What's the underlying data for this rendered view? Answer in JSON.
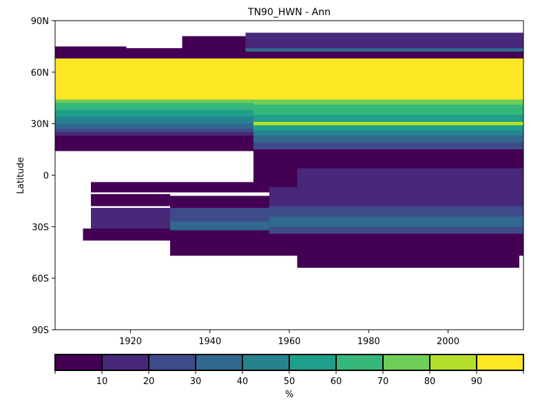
{
  "chart_data": {
    "type": "heatmap",
    "title": "TN90_HWN - Ann",
    "xlabel": "",
    "ylabel": "Latitude",
    "xlim": [
      1901,
      2019
    ],
    "ylim": [
      -90,
      90
    ],
    "x_ticks": [
      1920,
      1940,
      1960,
      1980,
      2000
    ],
    "y_ticks": [
      {
        "value": 90,
        "label": "90N"
      },
      {
        "value": 60,
        "label": "60N"
      },
      {
        "value": 30,
        "label": "30N"
      },
      {
        "value": 0,
        "label": "0"
      },
      {
        "value": -30,
        "label": "30S"
      },
      {
        "value": -60,
        "label": "60S"
      },
      {
        "value": -90,
        "label": "90S"
      }
    ],
    "grid": false,
    "colorbar": {
      "label": "%",
      "range": [
        0,
        100
      ],
      "levels": [
        0,
        10,
        20,
        30,
        40,
        50,
        60,
        70,
        80,
        90,
        100
      ],
      "tick_labels": [
        "10",
        "20",
        "30",
        "40",
        "50",
        "60",
        "70",
        "80",
        "90"
      ],
      "colors": [
        "#440154",
        "#482878",
        "#3e4a89",
        "#31688e",
        "#26828e",
        "#1f9e89",
        "#35b779",
        "#6ece58",
        "#b5de2b",
        "#fde725"
      ]
    },
    "bands": [
      {
        "x": [
          1901,
          2019
        ],
        "lat": [
          68,
          72
        ],
        "value": 5
      },
      {
        "x": [
          1901,
          2019
        ],
        "lat": [
          44,
          68
        ],
        "value": 95
      },
      {
        "x": [
          1901,
          1951
        ],
        "lat": [
          42,
          44
        ],
        "value": 75
      },
      {
        "x": [
          1901,
          1951
        ],
        "lat": [
          38,
          42
        ],
        "value": 65
      },
      {
        "x": [
          1901,
          1951
        ],
        "lat": [
          34,
          38
        ],
        "value": 55
      },
      {
        "x": [
          1901,
          1951
        ],
        "lat": [
          30,
          34
        ],
        "value": 45
      },
      {
        "x": [
          1901,
          1951
        ],
        "lat": [
          27,
          30
        ],
        "value": 35
      },
      {
        "x": [
          1901,
          1951
        ],
        "lat": [
          25,
          27
        ],
        "value": 25
      },
      {
        "x": [
          1901,
          1951
        ],
        "lat": [
          23,
          25
        ],
        "value": 15
      },
      {
        "x": [
          1901,
          1951
        ],
        "lat": [
          16,
          23
        ],
        "value": 5
      },
      {
        "x": [
          1901,
          1951
        ],
        "lat": [
          14,
          16
        ],
        "value": 5
      },
      {
        "x": [
          1951,
          2019
        ],
        "lat": [
          41,
          44
        ],
        "value": 75
      },
      {
        "x": [
          1951,
          2019
        ],
        "lat": [
          35,
          41
        ],
        "value": 65
      },
      {
        "x": [
          1951,
          2019
        ],
        "lat": [
          31,
          35
        ],
        "value": 55
      },
      {
        "x": [
          1951,
          2019
        ],
        "lat": [
          29,
          31
        ],
        "value": 85
      },
      {
        "x": [
          1951,
          2019
        ],
        "lat": [
          26,
          29
        ],
        "value": 55
      },
      {
        "x": [
          1951,
          2019
        ],
        "lat": [
          23,
          26
        ],
        "value": 45
      },
      {
        "x": [
          1951,
          2019
        ],
        "lat": [
          19,
          23
        ],
        "value": 35
      },
      {
        "x": [
          1951,
          2019
        ],
        "lat": [
          15,
          19
        ],
        "value": 25
      },
      {
        "x": [
          1951,
          2019
        ],
        "lat": [
          4,
          15
        ],
        "value": 5
      },
      {
        "x": [
          1901,
          1919
        ],
        "lat": [
          72,
          75
        ],
        "value": 5
      },
      {
        "x": [
          1919,
          1933
        ],
        "lat": [
          72,
          74
        ],
        "value": 5
      },
      {
        "x": [
          1933,
          1949
        ],
        "lat": [
          72,
          81
        ],
        "value": 5
      },
      {
        "x": [
          1949,
          2019
        ],
        "lat": [
          72,
          83
        ],
        "value": 15
      },
      {
        "x": [
          1949,
          2019
        ],
        "lat": [
          72,
          74
        ],
        "value": 35
      },
      {
        "x": [
          1951,
          2019
        ],
        "lat": [
          -7,
          4
        ],
        "value": 5
      },
      {
        "x": [
          1962,
          2019
        ],
        "lat": [
          -7,
          4
        ],
        "value": 15
      },
      {
        "x": [
          1910,
          1955
        ],
        "lat": [
          -10,
          -4
        ],
        "value": 5
      },
      {
        "x": [
          1910,
          1930
        ],
        "lat": [
          -18,
          -11
        ],
        "value": 5
      },
      {
        "x": [
          1910,
          1930
        ],
        "lat": [
          -31,
          -19
        ],
        "value": 15
      },
      {
        "x": [
          1908,
          1930
        ],
        "lat": [
          -38,
          -31
        ],
        "value": 5
      },
      {
        "x": [
          1930,
          1957
        ],
        "lat": [
          -19,
          -12
        ],
        "value": 5
      },
      {
        "x": [
          1930,
          1957
        ],
        "lat": [
          -27,
          -19
        ],
        "value": 25
      },
      {
        "x": [
          1930,
          1957
        ],
        "lat": [
          -32,
          -27
        ],
        "value": 35
      },
      {
        "x": [
          1930,
          1957
        ],
        "lat": [
          -47,
          -32
        ],
        "value": 5
      },
      {
        "x": [
          1955,
          2019
        ],
        "lat": [
          -10,
          -7
        ],
        "value": 15
      },
      {
        "x": [
          1955,
          2019
        ],
        "lat": [
          -18,
          -10
        ],
        "value": 15
      },
      {
        "x": [
          1955,
          2019
        ],
        "lat": [
          -24,
          -18
        ],
        "value": 25
      },
      {
        "x": [
          1955,
          2019
        ],
        "lat": [
          -30,
          -24
        ],
        "value": 35
      },
      {
        "x": [
          1955,
          2019
        ],
        "lat": [
          -34,
          -30
        ],
        "value": 25
      },
      {
        "x": [
          1955,
          2019
        ],
        "lat": [
          -38,
          -34
        ],
        "value": 5
      },
      {
        "x": [
          1955,
          2019
        ],
        "lat": [
          -47,
          -38
        ],
        "value": 5
      },
      {
        "x": [
          1962,
          2018
        ],
        "lat": [
          -54,
          -47
        ],
        "value": 5
      }
    ]
  }
}
